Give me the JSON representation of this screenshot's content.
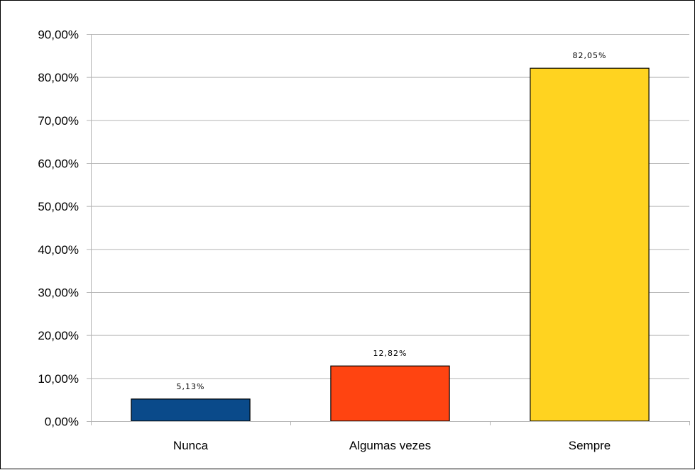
{
  "chart_data": {
    "type": "bar",
    "title": "",
    "xlabel": "",
    "ylabel": "",
    "categories": [
      "Nunca",
      "Algumas vezes",
      "Sempre"
    ],
    "values": [
      5.13,
      12.82,
      82.05
    ],
    "data_labels": [
      "5,13%",
      "12,82%",
      "82,05%"
    ],
    "colors": [
      "#0a4a8a",
      "#ff4411",
      "#ffd320"
    ],
    "ylim": [
      0,
      90
    ],
    "yticks": [
      0,
      10,
      20,
      30,
      40,
      50,
      60,
      70,
      80,
      90
    ],
    "ytick_labels": [
      "0,00%",
      "10,00%",
      "20,00%",
      "30,00%",
      "40,00%",
      "50,00%",
      "60,00%",
      "70,00%",
      "80,00%",
      "90,00%"
    ],
    "grid": true,
    "legend": "none"
  }
}
